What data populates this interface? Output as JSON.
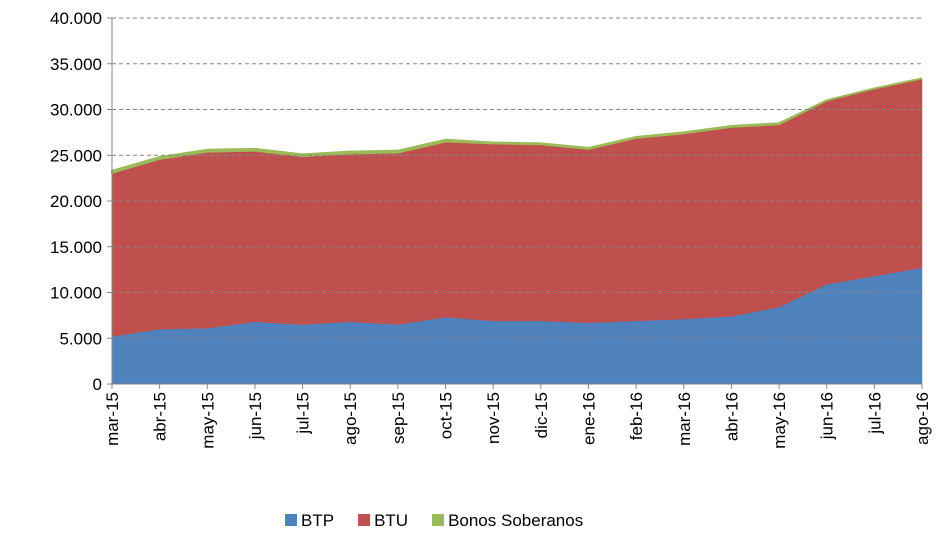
{
  "chart_data": {
    "type": "stacked_area",
    "categories": [
      "mar-15",
      "abr-15",
      "may-15",
      "jun-15",
      "jul-15",
      "ago-15",
      "sep-15",
      "oct-15",
      "nov-15",
      "dic-15",
      "ene-16",
      "feb-16",
      "mar-16",
      "abr-16",
      "may-16",
      "jun-16",
      "jul-16",
      "ago-16"
    ],
    "series": [
      {
        "name": "BTP",
        "color": "#4f81bd",
        "values": [
          5200,
          6000,
          6100,
          6800,
          6500,
          6800,
          6500,
          7300,
          6900,
          6900,
          6700,
          6900,
          7100,
          7400,
          8400,
          10900,
          11800,
          12700
        ]
      },
      {
        "name": "BTU",
        "color": "#c0504d",
        "values": [
          17900,
          18600,
          19300,
          18700,
          18400,
          18400,
          18800,
          19200,
          19400,
          19300,
          19000,
          20000,
          20300,
          20700,
          20000,
          20100,
          20500,
          20700
        ]
      },
      {
        "name": "Bonos Soberanos",
        "color": "#9bbb59",
        "values": [
          200,
          200,
          200,
          200,
          200,
          200,
          200,
          200,
          100,
          100,
          100,
          100,
          100,
          100,
          100,
          0,
          0,
          0
        ]
      }
    ],
    "ylim": [
      0,
      40000
    ],
    "yticks": [
      0,
      {
        "value": 5000,
        "label": "5.000"
      },
      {
        "value": 10000,
        "label": "10.000"
      },
      {
        "value": 15000,
        "label": "15.000"
      },
      {
        "value": 20000,
        "label": "20.000"
      },
      {
        "value": 25000,
        "label": "25.000"
      },
      {
        "value": 30000,
        "label": "30.000"
      },
      {
        "value": 35000,
        "label": "35.000"
      },
      {
        "value": 40000,
        "label": "40.000"
      }
    ],
    "grid": true,
    "legend": "bottom"
  }
}
